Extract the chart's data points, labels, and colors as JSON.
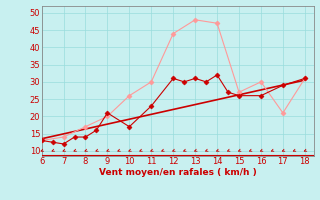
{
  "xlabel": "Vent moyen/en rafales ( km/h )",
  "xlim": [
    6,
    18.4
  ],
  "ylim": [
    8.5,
    52
  ],
  "xticks": [
    6,
    7,
    8,
    9,
    10,
    11,
    12,
    13,
    14,
    15,
    16,
    17,
    18
  ],
  "yticks": [
    10,
    15,
    20,
    25,
    30,
    35,
    40,
    45,
    50
  ],
  "bg_color": "#c8f0f0",
  "line1_x": [
    6,
    6.5,
    7,
    7.5,
    8,
    8.5,
    9,
    10,
    11,
    12,
    12.5,
    13,
    13.5,
    14,
    14.5,
    15,
    16,
    17,
    18
  ],
  "line1_y": [
    13,
    12.5,
    12,
    14,
    14,
    16,
    21,
    17,
    23,
    31,
    30,
    31,
    30,
    32,
    27,
    26,
    26,
    29,
    31
  ],
  "line1_color": "#cc0000",
  "line1_lw": 0.8,
  "line1_marker": "D",
  "line1_markersize": 2.5,
  "line2_x": [
    6,
    7,
    8,
    9,
    10,
    11,
    12,
    13,
    14,
    15,
    16,
    17,
    18
  ],
  "line2_y": [
    13,
    14,
    17,
    20,
    26,
    30,
    44,
    48,
    47,
    27,
    30,
    21,
    31
  ],
  "line2_color": "#ff9999",
  "line2_lw": 0.8,
  "line2_marker": "D",
  "line2_markersize": 2.5,
  "trend_x": [
    6,
    18
  ],
  "trend_y": [
    13.5,
    30.5
  ],
  "trend_color": "#cc0000",
  "trend_lw": 1.2,
  "grid_color": "#99dddd",
  "grid_lw": 0.5,
  "tick_color": "#cc0000",
  "label_color": "#cc0000",
  "arrow_color": "#cc0000",
  "border_color": "#888888",
  "hline_y": 8.85,
  "hline_color": "#cc0000",
  "label_fontsize": 6.5,
  "tick_fontsize": 6,
  "xlabel_fontsize": 6.5
}
